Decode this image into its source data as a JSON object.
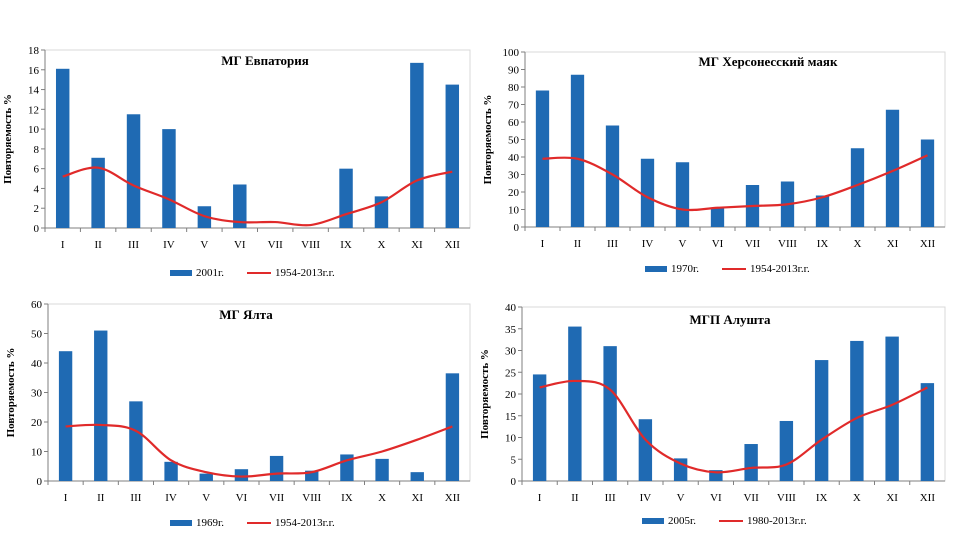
{
  "colors": {
    "bar": "#1f6ab3",
    "line": "#e02a2a",
    "axis": "#7f7f7f",
    "grid": "#bfbfbf"
  },
  "chart_data": [
    {
      "type": "bar",
      "title": "МГ Евпатория",
      "ylabel": "Повторяемость %",
      "ylim": [
        0,
        18
      ],
      "ytick_step": 2,
      "legend_position": "bottom",
      "categories": [
        "I",
        "II",
        "III",
        "IV",
        "V",
        "VI",
        "VII",
        "VIII",
        "IX",
        "X",
        "XI",
        "XII"
      ],
      "series": [
        {
          "name": "2001г.",
          "type": "bar",
          "values": [
            16.1,
            7.1,
            11.5,
            10.0,
            2.2,
            4.4,
            0,
            0,
            6.0,
            3.2,
            16.7,
            14.5
          ]
        },
        {
          "name": "1954-2013г.г.",
          "type": "line",
          "values": [
            5.2,
            6.1,
            4.3,
            2.9,
            1.2,
            0.6,
            0.6,
            0.3,
            1.4,
            2.6,
            4.8,
            5.7
          ]
        }
      ]
    },
    {
      "type": "bar",
      "title": "МГ Херсонесский маяк",
      "ylabel": "Повторяемость %",
      "ylim": [
        0,
        100
      ],
      "ytick_step": 10,
      "legend_position": "bottom",
      "categories": [
        "I",
        "II",
        "III",
        "IV",
        "V",
        "VI",
        "VII",
        "VIII",
        "IX",
        "X",
        "XI",
        "XII"
      ],
      "series": [
        {
          "name": "1970г.",
          "type": "bar",
          "values": [
            78,
            87,
            58,
            39,
            37,
            11,
            24,
            26,
            18,
            45,
            67,
            50
          ]
        },
        {
          "name": "1954-2013г.г.",
          "type": "line",
          "values": [
            39,
            39,
            30,
            17,
            10,
            11,
            12,
            13,
            17,
            24,
            32,
            41
          ]
        }
      ]
    },
    {
      "type": "bar",
      "title": "МГ Ялта",
      "ylabel": "Повторяемость %",
      "ylim": [
        0,
        60
      ],
      "ytick_step": 10,
      "legend_position": "bottom",
      "categories": [
        "I",
        "II",
        "III",
        "IV",
        "V",
        "VI",
        "VII",
        "VIII",
        "IX",
        "X",
        "XI",
        "XII"
      ],
      "series": [
        {
          "name": "1969г.",
          "type": "bar",
          "values": [
            44,
            51,
            27,
            6.5,
            2.5,
            4,
            8.5,
            3.5,
            9,
            7.5,
            3,
            36.5
          ]
        },
        {
          "name": "1954-2013г.г.",
          "type": "line",
          "values": [
            18.5,
            19,
            17,
            7,
            3,
            1.5,
            2.5,
            3,
            7,
            10,
            14,
            18.5
          ]
        }
      ]
    },
    {
      "type": "bar",
      "title": "МГП Алушта",
      "ylabel": "Повторяемость %",
      "ylim": [
        0,
        40
      ],
      "ytick_step": 5,
      "legend_position": "bottom",
      "categories": [
        "I",
        "II",
        "III",
        "IV",
        "V",
        "VI",
        "VII",
        "VIII",
        "IX",
        "X",
        "XI",
        "XII"
      ],
      "series": [
        {
          "name": "2005г.",
          "type": "bar",
          "values": [
            24.5,
            35.5,
            31,
            14.2,
            5.2,
            2.5,
            8.5,
            13.8,
            27.8,
            32.2,
            33.2,
            22.5
          ]
        },
        {
          "name": "1980-2013г.г.",
          "type": "line",
          "values": [
            21.5,
            23,
            21,
            9.5,
            4,
            2,
            3,
            3.8,
            9.5,
            14.5,
            17.5,
            21.5
          ]
        }
      ]
    }
  ]
}
